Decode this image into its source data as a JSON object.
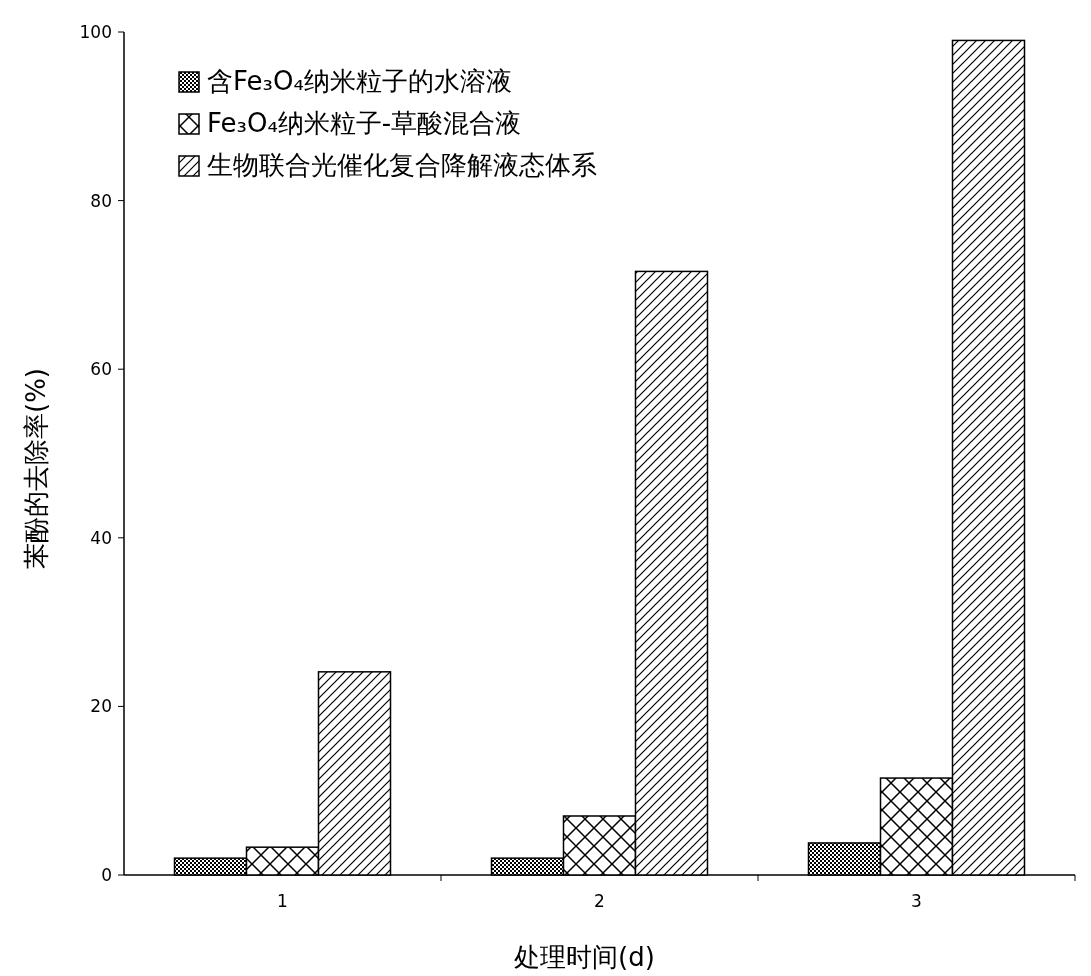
{
  "chart_data": {
    "type": "bar",
    "xlabel": "处理时间(d)",
    "ylabel": "苯酚的去除率(%)",
    "categories": [
      "1",
      "2",
      "3"
    ],
    "series": [
      {
        "name": "含Fe₃O₄纳米粒子的水溶液",
        "color": "#000000",
        "values": [
          2.0,
          2.0,
          3.8
        ]
      },
      {
        "name": "Fe₃O₄纳米粒子-草酸混合液",
        "color": "#000000",
        "values": [
          3.3,
          7.0,
          11.5
        ]
      },
      {
        "name": "生物联合光催化复合降解液态体系",
        "color": "#000000",
        "values": [
          24.1,
          71.6,
          99.0
        ]
      }
    ],
    "ylim": [
      0,
      100
    ],
    "yticks": [
      0,
      20,
      40,
      60,
      80,
      100
    ],
    "legend": "top left",
    "grid": false
  }
}
